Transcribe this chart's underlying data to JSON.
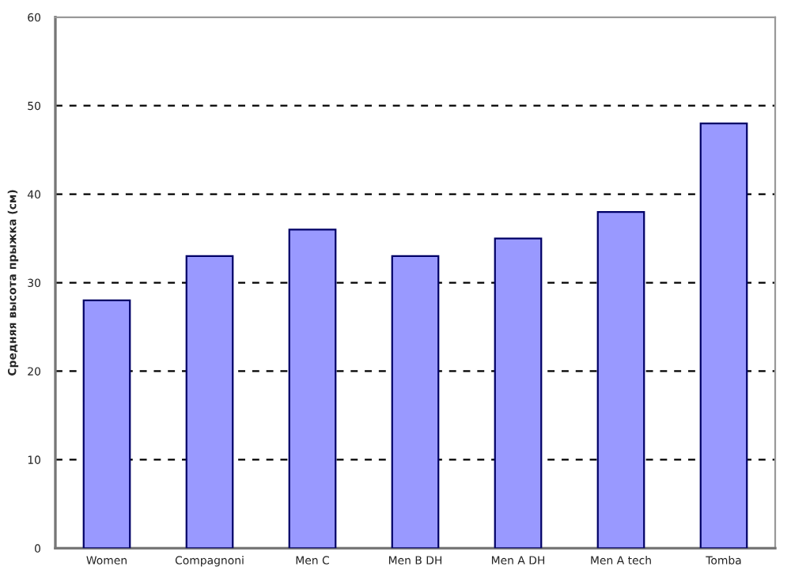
{
  "chart_data": {
    "type": "bar",
    "ylabel": "Средняя высота прыжка (см)",
    "categories": [
      "Women",
      "Compagnoni",
      "Men C",
      "Men B DH",
      "Men A DH",
      "Men A tech",
      "Tomba"
    ],
    "values": [
      28,
      33,
      36,
      33,
      35,
      38,
      48
    ],
    "color": "#9999ff",
    "ylim": [
      0,
      60
    ],
    "yticks": [
      0,
      10,
      20,
      30,
      40,
      50,
      60
    ],
    "grid": "y",
    "line_style": "dashed"
  }
}
